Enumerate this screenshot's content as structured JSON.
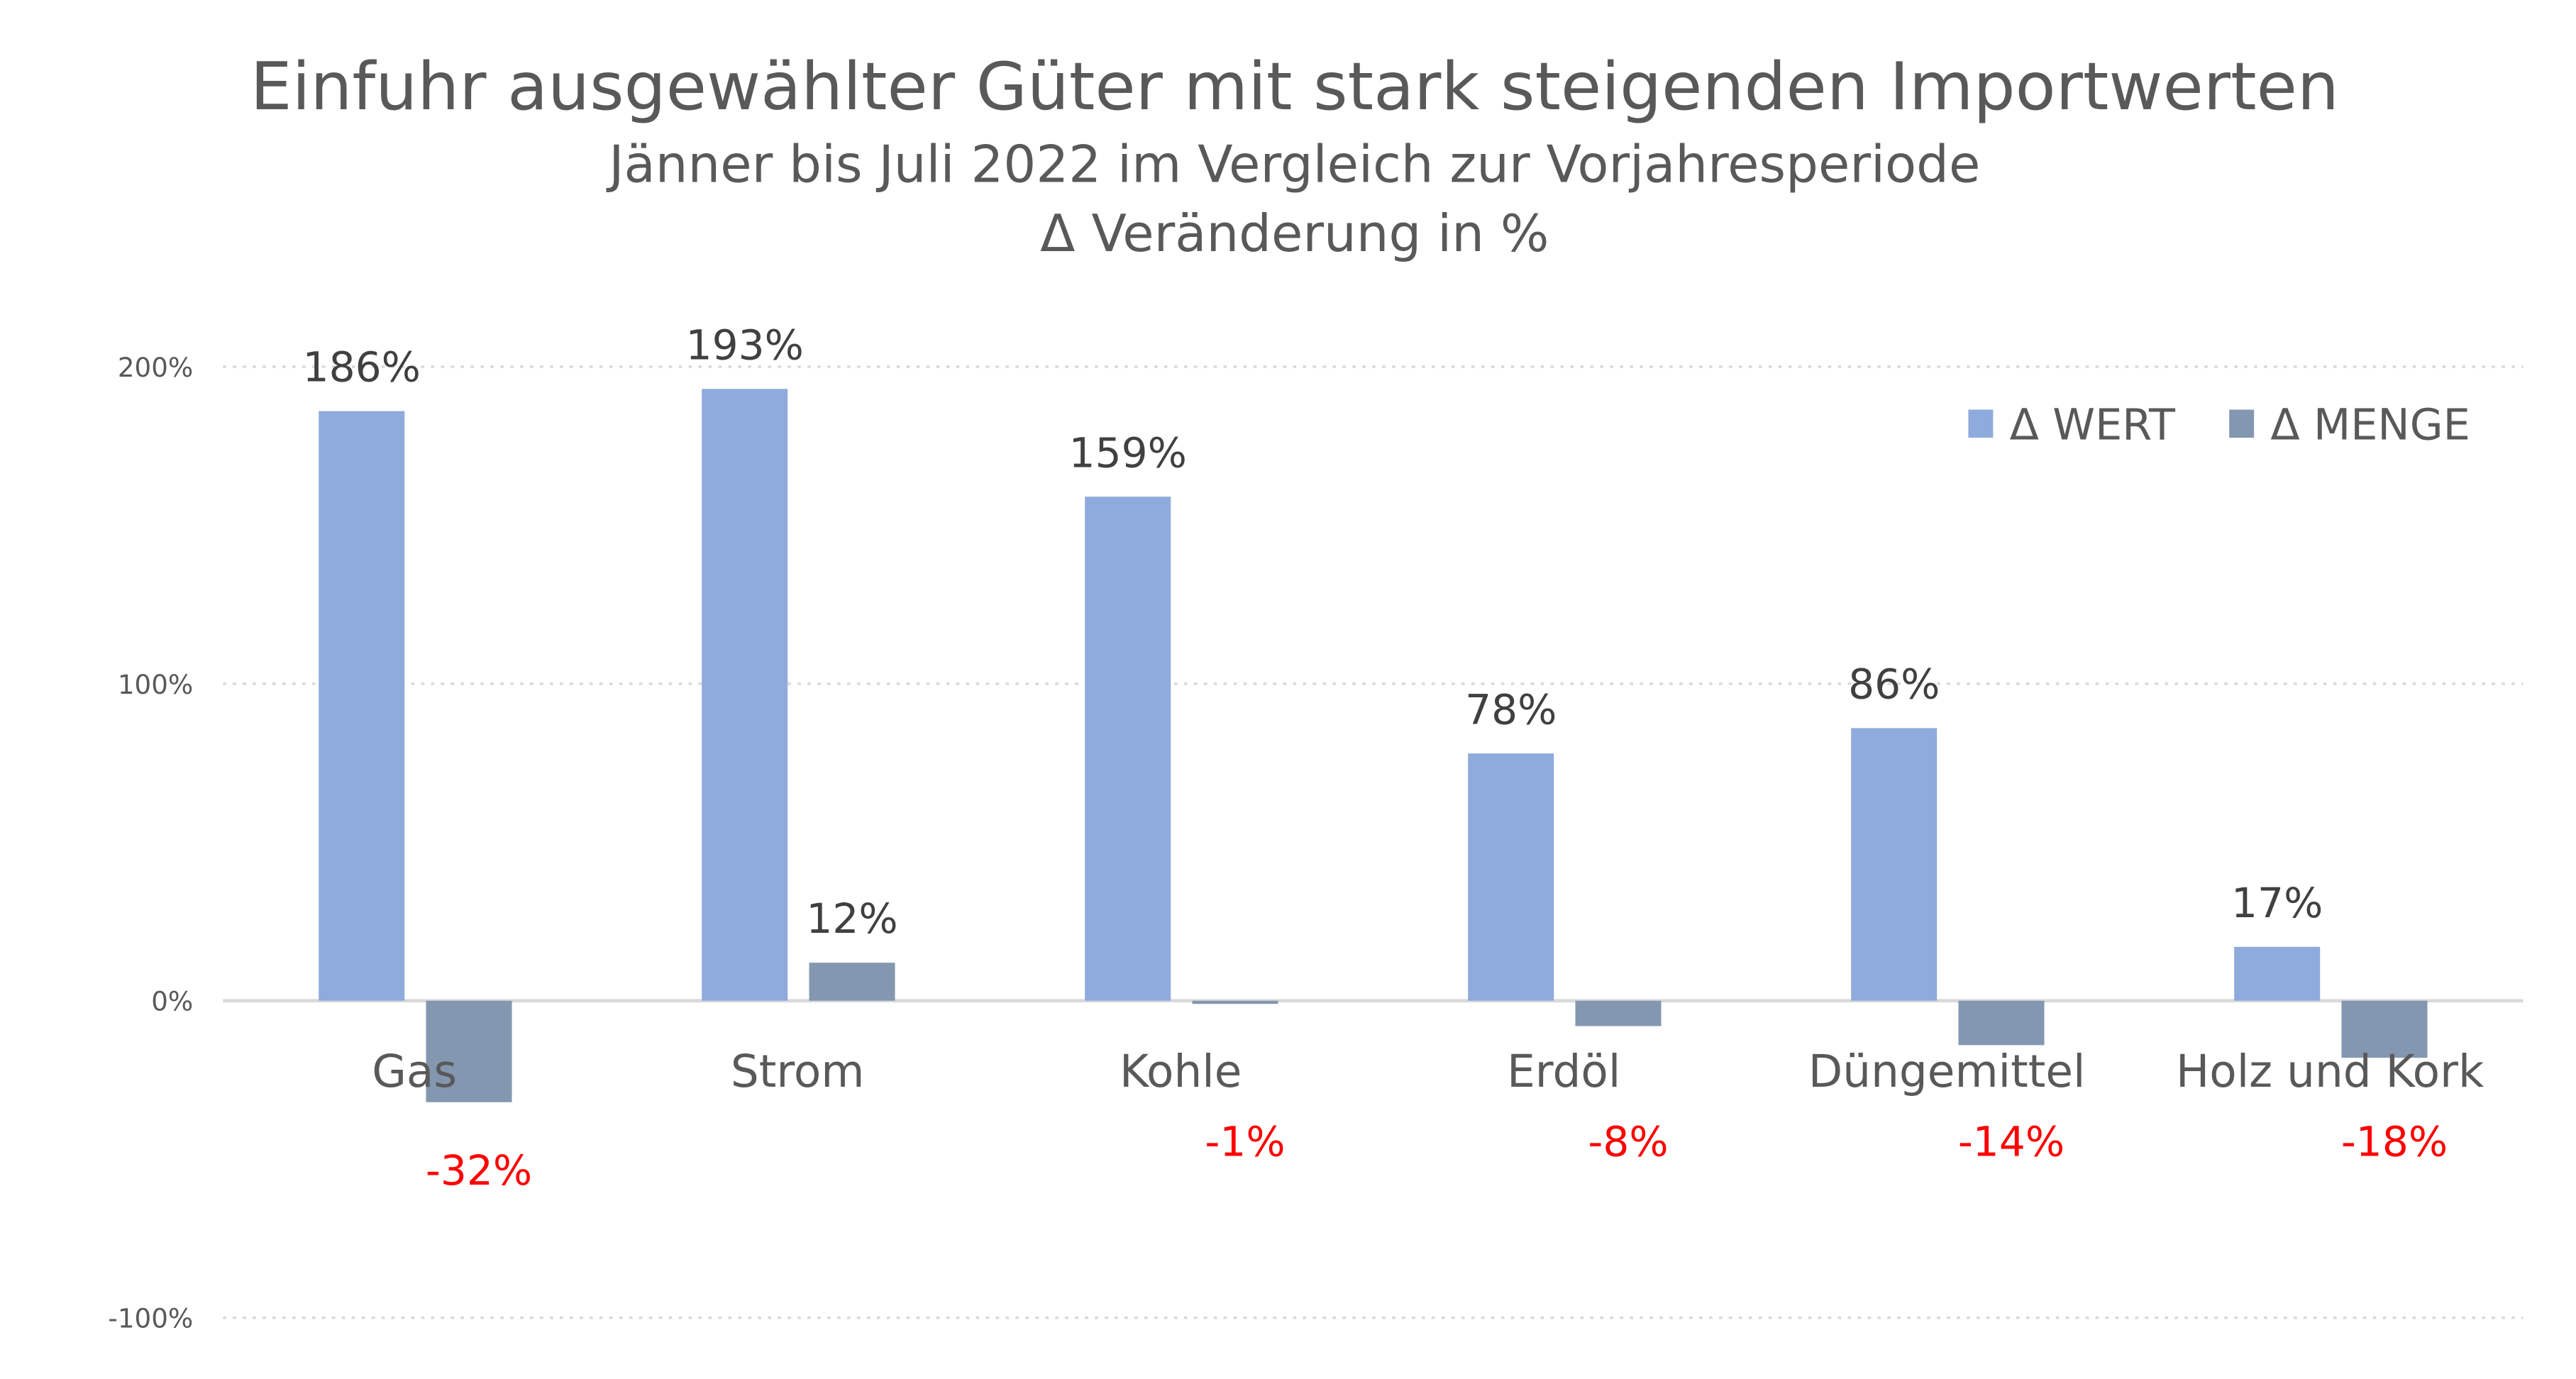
{
  "chart_data": {
    "type": "bar",
    "title": "Einfuhr ausgewählter Güter mit stark steigenden Importwerten",
    "subtitle": "Jänner bis Juli 2022 im Vergleich zur Vorjahresperiode",
    "subtitle2": "Δ Veränderung in %",
    "categories": [
      "Gas",
      "Strom",
      "Kohle",
      "Erdöl",
      "Düngemittel",
      "Holz und Kork"
    ],
    "series": [
      {
        "name": "Δ WERT",
        "color": "#8FAADC",
        "values": [
          186,
          193,
          159,
          78,
          86,
          17
        ],
        "labels": [
          "186%",
          "193%",
          "159%",
          "78%",
          "86%",
          "17%"
        ]
      },
      {
        "name": "Δ MENGE",
        "color": "#8497B0",
        "values": [
          -32,
          12,
          -1,
          -8,
          -14,
          -18
        ],
        "labels": [
          "-32%",
          "12%",
          "-1%",
          "-8%",
          "-14%",
          "-18%"
        ]
      }
    ],
    "ylim": [
      -100,
      200
    ],
    "yticks": [
      "-100%",
      "0%",
      "100%",
      "200%"
    ],
    "ytick_values": [
      -100,
      0,
      100,
      200
    ],
    "grid": true,
    "legend": "top-right",
    "negative_label_color": "#FF0000",
    "text_color": "#595959"
  }
}
